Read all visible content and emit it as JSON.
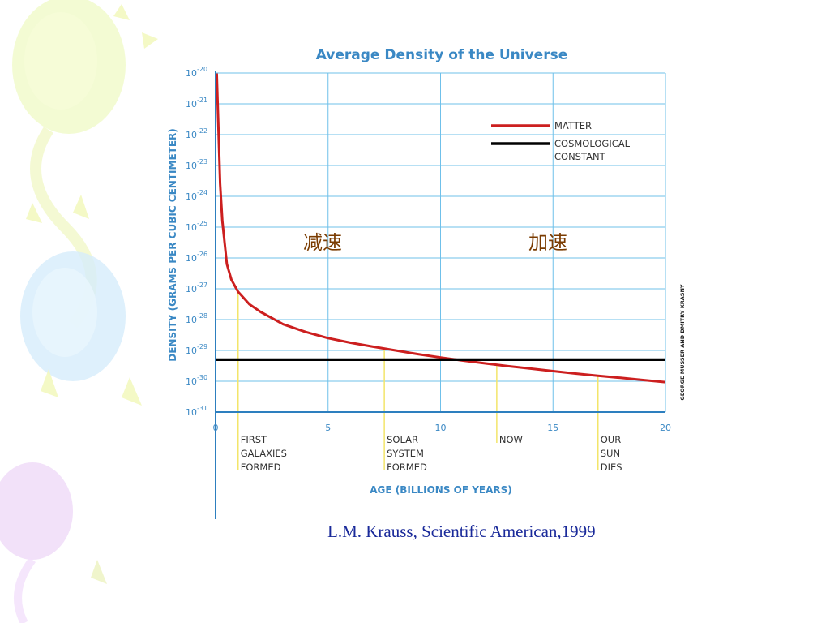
{
  "chart_data": {
    "type": "line",
    "title": "Average Density of the Universe",
    "xlabel": "AGE (BILLIONS OF YEARS)",
    "ylabel": "DENSITY (GRAMS PER CUBIC CENTIMETER)",
    "xlim": [
      0,
      20
    ],
    "ylim_exponent": [
      -31,
      -20
    ],
    "y_scale": "log10",
    "x_ticks": [
      "0",
      "5",
      "10",
      "15",
      "20"
    ],
    "y_tick_exponents": [
      "-20",
      "-21",
      "-22",
      "-23",
      "-24",
      "-25",
      "-26",
      "-27",
      "-28",
      "-29",
      "-30",
      "-31"
    ],
    "y_tick_base": "10",
    "grid": true,
    "series": [
      {
        "name": "MATTER",
        "color": "#cc1f1f",
        "x": [
          0.05,
          0.1,
          0.2,
          0.3,
          0.5,
          0.7,
          1.0,
          1.5,
          2,
          3,
          4,
          5,
          6,
          7,
          8,
          9,
          10,
          11,
          12,
          13,
          14,
          15,
          16,
          17,
          18,
          19,
          20
        ],
        "log10_y": [
          -20,
          -21.2,
          -23.6,
          -24.8,
          -26.2,
          -26.7,
          -27.1,
          -27.5,
          -27.75,
          -28.15,
          -28.4,
          -28.6,
          -28.75,
          -28.88,
          -29.0,
          -29.12,
          -29.23,
          -29.33,
          -29.42,
          -29.51,
          -29.59,
          -29.67,
          -29.75,
          -29.82,
          -29.89,
          -29.96,
          -30.03
        ]
      },
      {
        "name": "COSMOLOGICAL\nCONSTANT",
        "color": "#000000",
        "x": [
          0,
          20
        ],
        "log10_y": [
          -29.3,
          -29.3
        ]
      }
    ],
    "legend": {
      "position": "top-right",
      "entries": [
        "MATTER",
        "COSMOLOGICAL\nCONSTANT"
      ]
    },
    "annotations": [
      {
        "x": 1.0,
        "text": "FIRST\nGALAXIES\nFORMED"
      },
      {
        "x": 7.5,
        "text": "SOLAR\nSYSTEM\nFORMED"
      },
      {
        "x": 12.5,
        "text": "NOW"
      },
      {
        "x": 17.0,
        "text": "OUR\nSUN\nDIES"
      }
    ],
    "region_labels": [
      "减速",
      "加速"
    ],
    "credit": "GEORGE MUSSER AND DMITRY KRASNY"
  },
  "citation": "L.M. Krauss, Scientific American,1999"
}
